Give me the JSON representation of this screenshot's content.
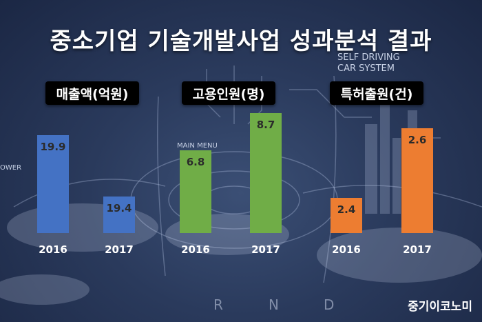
{
  "title": "중소기업 기술개발사업 성과분석 결과",
  "decor_text": {
    "self_driving_line1": "SELF DRIVING",
    "self_driving_line2": "CAR SYSTEM",
    "main_menu": "MAIN MENU",
    "power": "OWER",
    "rnd": [
      "R",
      "N",
      "D"
    ]
  },
  "brand": "중기이코노미",
  "chart_data": [
    {
      "type": "bar",
      "title": "매출액(억원)",
      "categories": [
        "2016",
        "2017"
      ],
      "values": [
        19.9,
        19.4
      ],
      "color": "#4472c4"
    },
    {
      "type": "bar",
      "title": "고용인원(명)",
      "categories": [
        "2016",
        "2017"
      ],
      "values": [
        6.8,
        8.7
      ],
      "color": "#70ad47"
    },
    {
      "type": "bar",
      "title": "특허출원(건)",
      "categories": [
        "2016",
        "2017"
      ],
      "values": [
        2.4,
        2.6
      ],
      "color": "#ed7d31"
    }
  ]
}
